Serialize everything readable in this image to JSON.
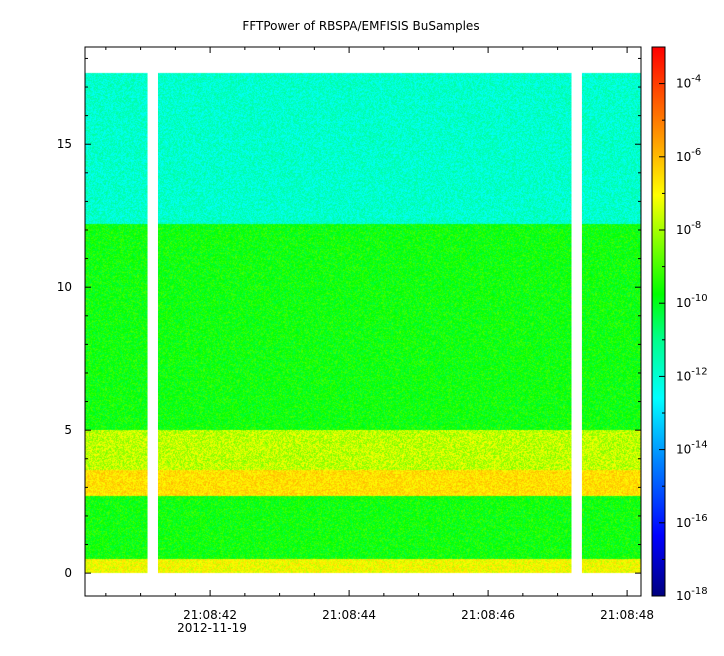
{
  "chart_data": {
    "type": "heatmap",
    "title": "FFTPower of RBSPA/EMFISIS  BuSamples",
    "xlabel": "",
    "ylabel": "",
    "x_tick_labels": [
      "21:08:42",
      "21:08:44",
      "21:08:46",
      "21:08:48"
    ],
    "x_date_label": "2012-11-19",
    "x_range_seconds": [
      40.2,
      48.2
    ],
    "y_ticks": [
      0,
      5,
      10,
      15
    ],
    "y_range": [
      -0.8,
      18.4
    ],
    "data_y_range": [
      0,
      17.5
    ],
    "data_gaps_seconds": [
      [
        41.1,
        41.25
      ],
      [
        47.2,
        47.35
      ]
    ],
    "colorbar": {
      "scale": "log",
      "range": [
        1e-18,
        0.001
      ],
      "ticks": [
        {
          "base": "10",
          "exp": "-4"
        },
        {
          "base": "10",
          "exp": "-6"
        },
        {
          "base": "10",
          "exp": "-8"
        },
        {
          "base": "10",
          "exp": "-10"
        },
        {
          "base": "10",
          "exp": "-12"
        },
        {
          "base": "10",
          "exp": "-14"
        },
        {
          "base": "10",
          "exp": "-16"
        },
        {
          "base": "10",
          "exp": "-18"
        }
      ],
      "tick_values_log10": [
        -4,
        -6,
        -8,
        -10,
        -12,
        -14,
        -16,
        -18
      ]
    },
    "bands": [
      {
        "y_range": [
          12.2,
          17.5
        ],
        "log10_power": -12
      },
      {
        "y_range": [
          5.0,
          12.2
        ],
        "log10_power": -10
      },
      {
        "y_range": [
          3.6,
          5.0
        ],
        "log10_power": -8.5
      },
      {
        "y_range": [
          2.7,
          3.6
        ],
        "log10_power": -7.5
      },
      {
        "y_range": [
          0.5,
          2.7
        ],
        "log10_power": -10
      },
      {
        "y_range": [
          0.0,
          0.5
        ],
        "log10_power": -8
      }
    ]
  }
}
